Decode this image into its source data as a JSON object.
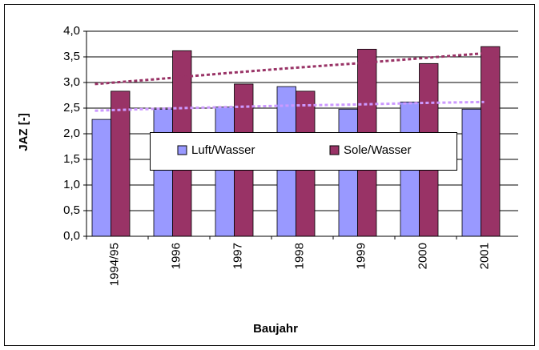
{
  "chart_data": {
    "type": "bar",
    "xlabel": "Baujahr",
    "ylabel": "JAZ [-]",
    "categories": [
      "1994/95",
      "1996",
      "1997",
      "1998",
      "1999",
      "2000",
      "2001"
    ],
    "series": [
      {
        "name": "Luft/Wasser",
        "color": "#9999ff",
        "values": [
          2.28,
          2.48,
          2.52,
          2.92,
          2.48,
          2.62,
          2.48
        ]
      },
      {
        "name": "Sole/Wasser",
        "color": "#993366",
        "values": [
          2.83,
          3.62,
          2.97,
          2.83,
          3.65,
          3.37,
          3.7
        ]
      }
    ],
    "trendlines": [
      {
        "color": "#cc99ff",
        "values": [
          2.45,
          2.49,
          2.52,
          2.55,
          2.57,
          2.6,
          2.62
        ]
      },
      {
        "color": "#993366",
        "values": [
          2.97,
          3.07,
          3.18,
          3.28,
          3.37,
          3.47,
          3.57
        ]
      }
    ],
    "ylim": [
      0,
      4
    ],
    "yticks": [
      {
        "value": 0,
        "label": "0,0"
      },
      {
        "value": 0.5,
        "label": "0,5"
      },
      {
        "value": 1,
        "label": "1,0"
      },
      {
        "value": 1.5,
        "label": "1,5"
      },
      {
        "value": 2,
        "label": "2,0"
      },
      {
        "value": 2.5,
        "label": "2,5"
      },
      {
        "value": 3,
        "label": "3,0"
      },
      {
        "value": 3.5,
        "label": "3,5"
      },
      {
        "value": 4,
        "label": "4,0"
      }
    ],
    "grid": true
  }
}
